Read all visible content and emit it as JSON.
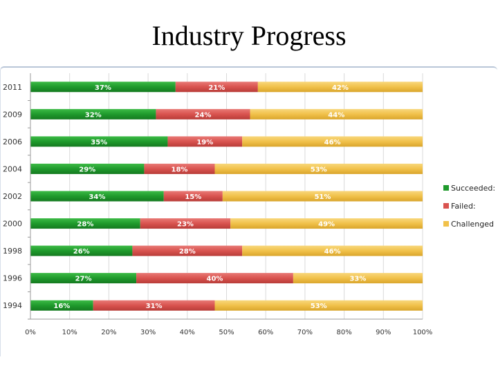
{
  "title": "Industry Progress",
  "chart_data": {
    "type": "bar",
    "orientation": "horizontal",
    "stacked": true,
    "title": "Industry Progress",
    "categories": [
      "2011",
      "2009",
      "2006",
      "2004",
      "2002",
      "2000",
      "1998",
      "1996",
      "1994"
    ],
    "series": [
      {
        "name": "Succeeded:",
        "color": "#1f9a2c",
        "values": [
          37,
          32,
          35,
          29,
          34,
          28,
          26,
          27,
          16
        ]
      },
      {
        "name": "Failed:",
        "color": "#d9534f",
        "values": [
          21,
          24,
          19,
          18,
          15,
          23,
          28,
          40,
          31
        ]
      },
      {
        "name": "Challenged",
        "color": "#f1c14a",
        "values": [
          42,
          44,
          46,
          53,
          51,
          49,
          46,
          33,
          53
        ]
      }
    ],
    "xticks": [
      "0%",
      "10%",
      "20%",
      "30%",
      "40%",
      "50%",
      "60%",
      "70%",
      "80%",
      "90%",
      "100%"
    ],
    "xlim": [
      0,
      100
    ],
    "xlabel": "",
    "ylabel": "",
    "grid": true,
    "legend": "right"
  }
}
